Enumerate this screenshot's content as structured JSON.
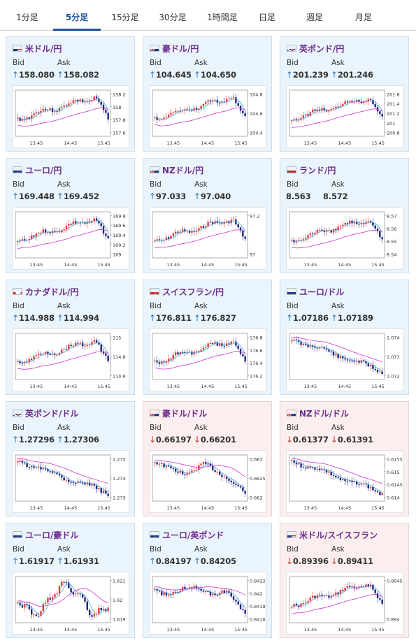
{
  "tabs": [
    {
      "label": "1分足",
      "active": false
    },
    {
      "label": "5分足",
      "active": true
    },
    {
      "label": "15分足",
      "active": false
    },
    {
      "label": "30分足",
      "active": false
    },
    {
      "label": "1時間足",
      "active": false
    },
    {
      "label": "日足",
      "active": false
    },
    {
      "label": "週足",
      "active": false
    },
    {
      "label": "月足",
      "active": false
    }
  ],
  "labels": {
    "bid": "Bid",
    "ask": "Ask"
  },
  "colors": {
    "accent": "#1a4f9c",
    "pair_text": "#6c2c8c",
    "up_arrow": "#2a7bb6",
    "down_arrow": "#c0392b",
    "card_up_bg": "#eaf4fc",
    "card_down_bg": "#fbeeee",
    "candle_up": "#e53935",
    "candle_down": "#1a237e",
    "ma_short": "#4aa8d8",
    "ma_long": "#cc33cc"
  },
  "cards": [
    {
      "pair": "米ドル/円",
      "flag": "us-jp-flag-icon",
      "dir": "up",
      "bid": "158.080",
      "ask": "158.082",
      "chart_data": {
        "type": "candlestick",
        "x_ticks": [
          "13:45",
          "14:45",
          "15:45"
        ],
        "y_ticks": [
          "158.2",
          "158",
          "157.8",
          "157.6"
        ],
        "trend": "up-then-drop"
      }
    },
    {
      "pair": "豪ドル/円",
      "flag": "au-jp-flag-icon",
      "dir": "up",
      "bid": "104.645",
      "ask": "104.650",
      "chart_data": {
        "type": "candlestick",
        "x_ticks": [
          "13:45",
          "14:45",
          "15:45"
        ],
        "y_ticks": [
          "104.8",
          "104.6",
          "104.4"
        ],
        "trend": "up-then-drop"
      }
    },
    {
      "pair": "英ポンド/円",
      "flag": "gb-jp-flag-icon",
      "dir": "up",
      "bid": "201.239",
      "ask": "201.246",
      "chart_data": {
        "type": "candlestick",
        "x_ticks": [
          "13:45",
          "14:45",
          "15:45"
        ],
        "y_ticks": [
          "201.6",
          "201.4",
          "201.2",
          "201",
          "200.8"
        ],
        "trend": "up-then-drop"
      }
    },
    {
      "pair": "ユーロ/円",
      "flag": "eu-jp-flag-icon",
      "dir": "up",
      "bid": "169.448",
      "ask": "169.452",
      "chart_data": {
        "type": "candlestick",
        "x_ticks": [
          "13:45",
          "14:45",
          "15:45"
        ],
        "y_ticks": [
          "169.8",
          "169.6",
          "169.4",
          "169.2",
          "169"
        ],
        "trend": "up-then-drop"
      }
    },
    {
      "pair": "NZドル/円",
      "flag": "nz-jp-flag-icon",
      "dir": "up",
      "bid": "97.033",
      "ask": "97.040",
      "chart_data": {
        "type": "candlestick",
        "x_ticks": [
          "13:45",
          "14:45",
          "15:45"
        ],
        "y_ticks": [
          "97.2",
          "97"
        ],
        "trend": "up-then-drop"
      }
    },
    {
      "pair": "ランド/円",
      "flag": "za-jp-flag-icon",
      "dir": "none",
      "bid": "8.563",
      "ask": "8.572",
      "chart_data": {
        "type": "candlestick",
        "x_ticks": [
          "13:45",
          "14:45",
          "15:45"
        ],
        "y_ticks": [
          "8.57",
          "8.56",
          "8.55",
          "8.54"
        ],
        "trend": "up-then-drop"
      }
    },
    {
      "pair": "カナダドル/円",
      "flag": "ca-jp-flag-icon",
      "dir": "up",
      "bid": "114.988",
      "ask": "114.994",
      "chart_data": {
        "type": "candlestick",
        "x_ticks": [
          "13:45",
          "14:45",
          "15:45"
        ],
        "y_ticks": [
          "115",
          "114.8",
          "114.6"
        ],
        "trend": "up-then-drop"
      }
    },
    {
      "pair": "スイスフラン/円",
      "flag": "ch-jp-flag-icon",
      "dir": "up",
      "bid": "176.811",
      "ask": "176.827",
      "chart_data": {
        "type": "candlestick",
        "x_ticks": [
          "13:45",
          "14:45",
          "15:45"
        ],
        "y_ticks": [
          "176.8",
          "176.6",
          "176.4",
          "176.2"
        ],
        "trend": "up-then-drop"
      }
    },
    {
      "pair": "ユーロ/ドル",
      "flag": "eu-us-flag-icon",
      "dir": "up",
      "bid": "1.07186",
      "ask": "1.07189",
      "chart_data": {
        "type": "candlestick",
        "x_ticks": [
          "13:45",
          "14:45",
          "15:45"
        ],
        "y_ticks": [
          "1.074",
          "1.073",
          "1.072"
        ],
        "trend": "down"
      }
    },
    {
      "pair": "英ポンド/ドル",
      "flag": "gb-us-flag-icon",
      "dir": "up",
      "bid": "1.27296",
      "ask": "1.27306",
      "chart_data": {
        "type": "candlestick",
        "x_ticks": [
          "13:45",
          "14:45",
          "15:45"
        ],
        "y_ticks": [
          "1.275",
          "1.274",
          "1.273"
        ],
        "trend": "down"
      }
    },
    {
      "pair": "豪ドル/ドル",
      "flag": "au-us-flag-icon",
      "dir": "down",
      "bid": "0.66197",
      "ask": "0.66201",
      "chart_data": {
        "type": "candlestick",
        "x_ticks": [
          "13:45",
          "14:45",
          "15:45"
        ],
        "y_ticks": [
          "0.663",
          "0.6625",
          "0.662"
        ],
        "trend": "down-up-down"
      }
    },
    {
      "pair": "NZドル/ドル",
      "flag": "nz-us-flag-icon",
      "dir": "down",
      "bid": "0.61377",
      "ask": "0.61391",
      "chart_data": {
        "type": "candlestick",
        "x_ticks": [
          "13:45",
          "14:45",
          "15:45"
        ],
        "y_ticks": [
          "0.6155",
          "0.615",
          "0.6145",
          "0.614"
        ],
        "trend": "down"
      }
    },
    {
      "pair": "ユーロ/豪ドル",
      "flag": "eu-au-flag-icon",
      "dir": "up",
      "bid": "1.61917",
      "ask": "1.61931",
      "chart_data": {
        "type": "candlestick",
        "x_ticks": [
          "13:45",
          "14:45",
          "15:45"
        ],
        "y_ticks": [
          "1.621",
          "1.62",
          "1.619"
        ],
        "trend": "volatile"
      }
    },
    {
      "pair": "ユーロ/英ポンド",
      "flag": "eu-gb-flag-icon",
      "dir": "up",
      "bid": "0.84197",
      "ask": "0.84205",
      "chart_data": {
        "type": "candlestick",
        "x_ticks": [
          "13:45",
          "14:45",
          "15:45"
        ],
        "y_ticks": [
          "0.8422",
          "0.842",
          "0.8418",
          "0.8416"
        ],
        "trend": "flat-then-drop"
      }
    },
    {
      "pair": "米ドル/スイスフラン",
      "flag": "us-ch-flag-icon",
      "dir": "down",
      "bid": "0.89396",
      "ask": "0.89411",
      "chart_data": {
        "type": "candlestick",
        "x_ticks": [
          "13:45",
          "14:45",
          "15:45"
        ],
        "y_ticks": [
          "0.8945",
          "0.894"
        ],
        "trend": "up-then-drop"
      }
    }
  ]
}
